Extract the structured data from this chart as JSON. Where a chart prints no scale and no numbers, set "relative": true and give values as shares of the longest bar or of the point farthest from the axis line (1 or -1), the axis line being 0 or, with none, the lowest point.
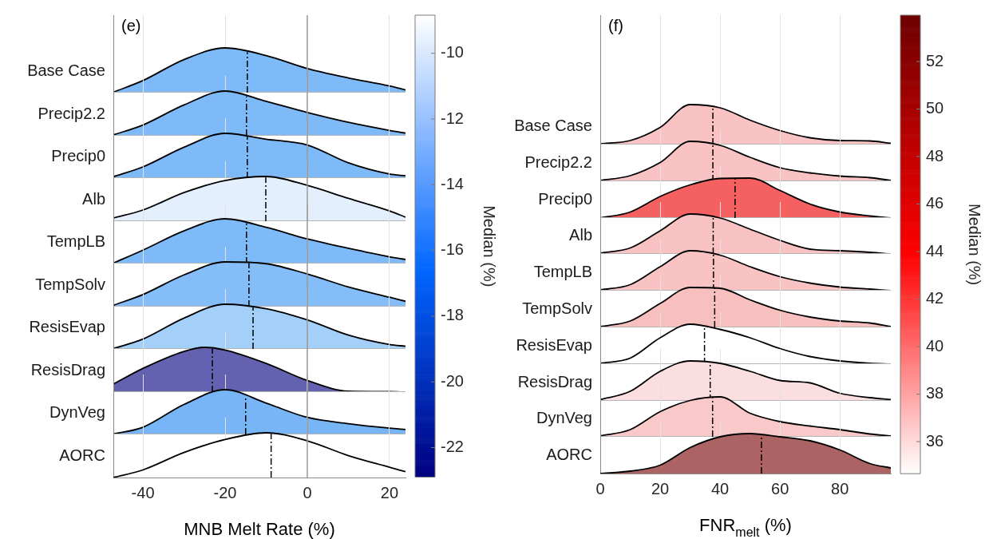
{
  "chart_data": [
    {
      "type": "area",
      "title": "(e)",
      "clabel": "Median (%)",
      "clim": [
        -22.9,
        -8.84
      ],
      "cticks": [
        -22,
        -20,
        -18,
        -16,
        -14,
        -12,
        -10
      ],
      "relative": true,
      "grid": "x",
      "tick_labels": false,
      "xlim": [
        -47.2,
        23.9
      ],
      "xticks": [
        -40,
        -20,
        0,
        20
      ],
      "x": [
        -47.2,
        -40,
        -30,
        -20,
        -10,
        0,
        10,
        20,
        23.9
      ],
      "series": [
        {
          "name": "Base Case",
          "color": "#7fbaf8",
          "values": [
            0.01,
            0.27,
            0.74,
            1,
            0.83,
            0.54,
            0.33,
            0.15,
            0.06
          ]
        }
      ],
      "ref_lines": [
        {
          "axis": "x",
          "value": 0,
          "color": "#9a9a9a",
          "line_style": "solid"
        },
        {
          "axis": "x",
          "value": -14.6,
          "color": "#000000",
          "line_style": "dashed"
        }
      ]
    },
    {
      "type": "area",
      "relative": true,
      "grid": "x",
      "tick_labels": false,
      "xlim": [
        -47.2,
        23.9
      ],
      "xticks": [
        -40,
        -20,
        0,
        20
      ],
      "x": [
        -47.2,
        -40,
        -30,
        -20,
        -10,
        0,
        10,
        20,
        23.9
      ],
      "series": [
        {
          "name": "Precip2.2",
          "color": "#7fbaf8",
          "values": [
            0.02,
            0.24,
            0.69,
            1,
            0.77,
            0.52,
            0.3,
            0.12,
            0.06
          ]
        }
      ],
      "ref_lines": [
        {
          "axis": "x",
          "value": 0,
          "color": "#9a9a9a",
          "line_style": "solid"
        },
        {
          "axis": "x",
          "value": -14.8,
          "color": "#000000",
          "line_style": "dashed"
        }
      ]
    },
    {
      "type": "area",
      "relative": true,
      "grid": "x",
      "tick_labels": false,
      "xlim": [
        -47.2,
        23.9
      ],
      "xticks": [
        -40,
        -20,
        0,
        20
      ],
      "x": [
        -47.2,
        -40,
        -30,
        -20,
        -10,
        0,
        10,
        20,
        23.9
      ],
      "series": [
        {
          "name": "Precip0",
          "color": "#7fbaf8",
          "values": [
            0.03,
            0.25,
            0.69,
            1,
            0.87,
            0.74,
            0.34,
            0.09,
            0.05
          ]
        }
      ],
      "ref_lines": [
        {
          "axis": "x",
          "value": 0,
          "color": "#9a9a9a",
          "line_style": "solid"
        },
        {
          "axis": "x",
          "value": -14.6,
          "color": "#000000",
          "line_style": "dashed"
        }
      ]
    },
    {
      "type": "area",
      "relative": true,
      "grid": "x",
      "tick_labels": false,
      "xlim": [
        -47.2,
        23.9
      ],
      "xticks": [
        -40,
        -20,
        0,
        20
      ],
      "x": [
        -47.2,
        -40,
        -30,
        -20,
        -10,
        0,
        10,
        20,
        23.9
      ],
      "series": [
        {
          "name": "Alb",
          "color": "#e3effc",
          "values": [
            0.07,
            0.25,
            0.64,
            0.91,
            1,
            0.8,
            0.51,
            0.23,
            0.09
          ]
        }
      ],
      "ref_lines": [
        {
          "axis": "x",
          "value": 0,
          "color": "#9a9a9a",
          "line_style": "solid"
        },
        {
          "axis": "x",
          "value": -10.1,
          "color": "#000000",
          "line_style": "dashed"
        }
      ]
    },
    {
      "type": "area",
      "relative": true,
      "grid": "x",
      "tick_labels": false,
      "xlim": [
        -47.2,
        23.9
      ],
      "xticks": [
        -40,
        -20,
        0,
        20
      ],
      "x": [
        -47.2,
        -40,
        -30,
        -20,
        -10,
        0,
        10,
        20,
        23.9
      ],
      "series": [
        {
          "name": "TempLB",
          "color": "#7fbaf8",
          "values": [
            0.01,
            0.3,
            0.73,
            1,
            0.81,
            0.55,
            0.34,
            0.15,
            0.09
          ]
        }
      ],
      "ref_lines": [
        {
          "axis": "x",
          "value": 0,
          "color": "#9a9a9a",
          "line_style": "solid"
        },
        {
          "axis": "x",
          "value": -14.8,
          "color": "#000000",
          "line_style": "dashed"
        }
      ]
    },
    {
      "type": "area",
      "relative": true,
      "grid": "x",
      "tick_labels": false,
      "xlim": [
        -47.2,
        23.9
      ],
      "xticks": [
        -40,
        -20,
        0,
        20
      ],
      "x": [
        -47.2,
        -40,
        -30,
        -20,
        -10,
        0,
        10,
        20,
        23.9
      ],
      "series": [
        {
          "name": "TempSolv",
          "color": "#84bdf8",
          "values": [
            0.03,
            0.27,
            0.71,
            1,
            0.96,
            0.73,
            0.44,
            0.21,
            0.12
          ]
        }
      ],
      "ref_lines": [
        {
          "axis": "x",
          "value": 0,
          "color": "#9a9a9a",
          "line_style": "solid"
        },
        {
          "axis": "x",
          "value": -14.2,
          "color": "#000000",
          "line_style": "dashed"
        }
      ]
    },
    {
      "type": "area",
      "relative": true,
      "grid": "x",
      "tick_labels": false,
      "xlim": [
        -47.2,
        23.9
      ],
      "xticks": [
        -40,
        -20,
        0,
        20
      ],
      "x": [
        -47.2,
        -40,
        -30,
        -20,
        -10,
        0,
        10,
        20,
        23.9
      ],
      "series": [
        {
          "name": "ResisEvap",
          "color": "#a3cff9",
          "values": [
            0.01,
            0.22,
            0.69,
            1,
            0.9,
            0.65,
            0.31,
            0.1,
            0.06
          ]
        }
      ],
      "ref_lines": [
        {
          "axis": "x",
          "value": 0,
          "color": "#9a9a9a",
          "line_style": "solid"
        },
        {
          "axis": "x",
          "value": -13.2,
          "color": "#000000",
          "line_style": "dashed"
        }
      ]
    },
    {
      "type": "area",
      "relative": true,
      "grid": "x",
      "tick_labels": false,
      "xlim": [
        -47.2,
        23.9
      ],
      "xticks": [
        -40,
        -20,
        0,
        20
      ],
      "x": [
        -47.2,
        -40,
        -30,
        -25,
        -20,
        -10,
        0,
        10,
        20,
        23.9
      ],
      "series": [
        {
          "name": "ResisDrag",
          "color": "#6461b0",
          "values": [
            0.18,
            0.53,
            0.91,
            1,
            0.94,
            0.64,
            0.26,
            0.02,
            0.01,
            0
          ]
        }
      ],
      "ref_lines": [
        {
          "axis": "x",
          "value": 0,
          "color": "#9a9a9a",
          "line_style": "solid"
        },
        {
          "axis": "x",
          "value": -23.1,
          "color": "#000000",
          "line_style": "dashed"
        }
      ]
    },
    {
      "type": "area",
      "relative": true,
      "grid": "x",
      "tick_labels": false,
      "xlim": [
        -47.2,
        23.9
      ],
      "xticks": [
        -40,
        -20,
        0,
        20
      ],
      "x": [
        -47.2,
        -40,
        -30,
        -20,
        -10,
        0,
        10,
        20,
        23.9
      ],
      "series": [
        {
          "name": "DynVeg",
          "color": "#78b5f7",
          "values": [
            0.01,
            0.16,
            0.67,
            1,
            0.7,
            0.38,
            0.24,
            0.14,
            0.11
          ]
        }
      ],
      "ref_lines": [
        {
          "axis": "x",
          "value": 0,
          "color": "#9a9a9a",
          "line_style": "solid"
        },
        {
          "axis": "x",
          "value": -15,
          "color": "#000000",
          "line_style": "dashed"
        }
      ]
    },
    {
      "type": "area",
      "xlabel": "MNB Melt Rate (%)",
      "relative": true,
      "grid": "x",
      "xlim": [
        -47.2,
        23.9
      ],
      "xticks": [
        -40,
        -20,
        0,
        20
      ],
      "x": [
        -47.2,
        -40,
        -30,
        -20,
        -10,
        0,
        10,
        20,
        23.9
      ],
      "series": [
        {
          "name": "AORC",
          "color": "#ffffff",
          "values": [
            0,
            0.17,
            0.56,
            0.85,
            1,
            0.82,
            0.49,
            0.23,
            0.13
          ]
        }
      ],
      "ref_lines": [
        {
          "axis": "x",
          "value": 0,
          "color": "#9a9a9a",
          "line_style": "solid"
        },
        {
          "axis": "x",
          "value": -8.8,
          "color": "#000000",
          "line_style": "dashed"
        }
      ]
    },
    {
      "type": "area",
      "title": "(f)",
      "clabel": "Median (%)",
      "clim": [
        34.65,
        53.95
      ],
      "cticks": [
        36,
        38,
        40,
        42,
        44,
        46,
        48,
        50,
        52
      ],
      "relative": true,
      "grid": "x",
      "tick_labels": false,
      "xlim": [
        0,
        97
      ],
      "xticks": [
        0,
        20,
        40,
        60,
        80
      ],
      "x": [
        0,
        10,
        20,
        30,
        40,
        50,
        60,
        70,
        80,
        90,
        97
      ],
      "series": [
        {
          "name": "Base Case",
          "color": "#f9c3c3",
          "values": [
            0.02,
            0.1,
            0.43,
            1,
            0.92,
            0.61,
            0.35,
            0.17,
            0.1,
            0.09,
            0.03
          ]
        }
      ],
      "ref_lines": [
        {
          "axis": "x",
          "value": 37.6,
          "color": "#000000",
          "line_style": "dashed"
        }
      ]
    },
    {
      "type": "area",
      "relative": true,
      "grid": "x",
      "tick_labels": false,
      "xlim": [
        0,
        97
      ],
      "xticks": [
        0,
        20,
        40,
        60,
        80
      ],
      "x": [
        0,
        10,
        20,
        30,
        40,
        50,
        60,
        70,
        80,
        90,
        97
      ],
      "series": [
        {
          "name": "Precip2.2",
          "color": "#f9c3c3",
          "values": [
            0.02,
            0.14,
            0.47,
            1,
            0.9,
            0.6,
            0.34,
            0.21,
            0.13,
            0.09,
            0.02
          ]
        }
      ],
      "ref_lines": [
        {
          "axis": "x",
          "value": 37.6,
          "color": "#000000",
          "line_style": "dashed"
        }
      ]
    },
    {
      "type": "area",
      "relative": true,
      "grid": "x",
      "tick_labels": false,
      "xlim": [
        0,
        97
      ],
      "xticks": [
        0,
        20,
        40,
        60,
        80
      ],
      "x": [
        0,
        10,
        20,
        30,
        40,
        50,
        60,
        70,
        80,
        90,
        97
      ],
      "series": [
        {
          "name": "Precip0",
          "color": "#f56060",
          "values": [
            0,
            0.15,
            0.54,
            0.83,
            0.99,
            1,
            0.69,
            0.35,
            0.15,
            0.05,
            0
          ]
        }
      ],
      "ref_lines": [
        {
          "axis": "x",
          "value": 45,
          "color": "#000000",
          "line_style": "dashed"
        }
      ]
    },
    {
      "type": "area",
      "relative": true,
      "grid": "x",
      "tick_labels": false,
      "xlim": [
        0,
        97
      ],
      "xticks": [
        0,
        20,
        40,
        60,
        80
      ],
      "x": [
        0,
        10,
        20,
        30,
        40,
        50,
        60,
        70,
        80,
        90,
        97
      ],
      "series": [
        {
          "name": "Alb",
          "color": "#f9c2c2",
          "values": [
            0.02,
            0.15,
            0.58,
            1,
            0.9,
            0.62,
            0.34,
            0.12,
            0.08,
            0.04,
            0
          ]
        }
      ],
      "ref_lines": [
        {
          "axis": "x",
          "value": 37.7,
          "color": "#000000",
          "line_style": "dashed"
        }
      ]
    },
    {
      "type": "area",
      "relative": true,
      "grid": "x",
      "tick_labels": false,
      "xlim": [
        0,
        97
      ],
      "xticks": [
        0,
        20,
        40,
        60,
        80
      ],
      "x": [
        0,
        10,
        20,
        30,
        40,
        50,
        60,
        70,
        80,
        90,
        97
      ],
      "series": [
        {
          "name": "TempLB",
          "color": "#f9c3c3",
          "values": [
            0.02,
            0.15,
            0.6,
            1,
            0.89,
            0.6,
            0.35,
            0.19,
            0.09,
            0.04,
            0
          ]
        }
      ],
      "ref_lines": [
        {
          "axis": "x",
          "value": 37.8,
          "color": "#000000",
          "line_style": "dashed"
        }
      ]
    },
    {
      "type": "area",
      "relative": true,
      "grid": "x",
      "tick_labels": false,
      "xlim": [
        0,
        97
      ],
      "xticks": [
        0,
        20,
        40,
        60,
        80
      ],
      "x": [
        0,
        10,
        20,
        30,
        40,
        50,
        60,
        70,
        80,
        90,
        97
      ],
      "series": [
        {
          "name": "TempSolv",
          "color": "#f8bfbf",
          "values": [
            0.02,
            0.16,
            0.6,
            1,
            0.98,
            0.69,
            0.43,
            0.26,
            0.16,
            0.11,
            0.02
          ]
        }
      ],
      "ref_lines": [
        {
          "axis": "x",
          "value": 38.2,
          "color": "#000000",
          "line_style": "dashed"
        }
      ]
    },
    {
      "type": "area",
      "relative": true,
      "grid": "x",
      "tick_labels": false,
      "xlim": [
        0,
        97
      ],
      "xticks": [
        0,
        20,
        40,
        60,
        80
      ],
      "x": [
        0,
        10,
        20,
        30,
        40,
        50,
        60,
        70,
        80,
        90,
        97
      ],
      "series": [
        {
          "name": "ResisEvap",
          "color": "#ffffff",
          "values": [
            0.02,
            0.15,
            0.66,
            1,
            0.87,
            0.66,
            0.39,
            0.19,
            0.08,
            0.02,
            0
          ]
        }
      ],
      "ref_lines": [
        {
          "axis": "x",
          "value": 34.8,
          "color": "#000000",
          "line_style": "dashed"
        }
      ]
    },
    {
      "type": "area",
      "relative": true,
      "grid": "x",
      "tick_labels": false,
      "xlim": [
        0,
        97
      ],
      "xticks": [
        0,
        20,
        40,
        60,
        80
      ],
      "x": [
        0,
        10,
        20,
        30,
        40,
        50,
        60,
        70,
        80,
        90,
        97
      ],
      "series": [
        {
          "name": "ResisDrag",
          "color": "#fbdfe0",
          "values": [
            0.03,
            0.24,
            0.74,
            1,
            0.94,
            0.74,
            0.51,
            0.45,
            0.19,
            0.08,
            0.03
          ]
        }
      ],
      "ref_lines": [
        {
          "axis": "x",
          "value": 36.7,
          "color": "#000000",
          "line_style": "dashed"
        }
      ]
    },
    {
      "type": "area",
      "relative": true,
      "grid": "x",
      "tick_labels": false,
      "xlim": [
        0,
        97
      ],
      "xticks": [
        0,
        20,
        40,
        60,
        80
      ],
      "x": [
        0,
        10,
        20,
        30,
        40,
        50,
        60,
        70,
        80,
        90,
        97
      ],
      "series": [
        {
          "name": "DynVeg",
          "color": "#f9c8c8",
          "values": [
            0.02,
            0.18,
            0.63,
            0.91,
            1,
            0.59,
            0.38,
            0.27,
            0.18,
            0.07,
            0.02
          ]
        }
      ],
      "ref_lines": [
        {
          "axis": "x",
          "value": 37.5,
          "color": "#000000",
          "line_style": "dashed"
        }
      ]
    },
    {
      "type": "area",
      "xlabel": "FNR$_{melt}$ (%)",
      "relative": true,
      "grid": "x",
      "xlim": [
        0,
        97
      ],
      "xticks": [
        0,
        20,
        40,
        60,
        80
      ],
      "x": [
        0,
        10,
        20,
        30,
        40,
        50,
        60,
        70,
        80,
        90,
        97
      ],
      "series": [
        {
          "name": "AORC",
          "color": "#ac6363",
          "values": [
            0,
            0.06,
            0.21,
            0.65,
            0.92,
            1,
            0.92,
            0.82,
            0.59,
            0.25,
            0.14
          ]
        }
      ],
      "ref_lines": [
        {
          "axis": "x",
          "value": 53.8,
          "color": "#000000",
          "line_style": "dashed"
        }
      ]
    }
  ]
}
